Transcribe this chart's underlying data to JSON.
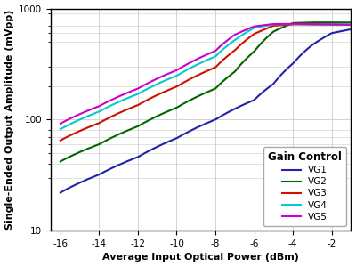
{
  "xlabel": "Average Input Optical Power (dBm)",
  "ylabel": "Single-Ended Output Amplitude (mVpp)",
  "xlim": [
    -16.5,
    -1.0
  ],
  "ylim": [
    10,
    1000
  ],
  "xticks": [
    -16,
    -14,
    -12,
    -10,
    -8,
    -6,
    -4,
    -2
  ],
  "yticks_major": [
    10,
    100,
    1000
  ],
  "legend_title": "Gain Control",
  "series": [
    {
      "label": "VG1",
      "color": "#2222aa",
      "x": [
        -16,
        -14,
        -12,
        -10,
        -8,
        -6,
        -5,
        -4,
        -3,
        -2,
        -1
      ],
      "y": [
        22,
        32,
        46,
        68,
        100,
        150,
        210,
        320,
        470,
        600,
        650
      ]
    },
    {
      "label": "VG2",
      "color": "#006600",
      "x": [
        -16,
        -14,
        -12,
        -10,
        -8,
        -7,
        -6,
        -5,
        -4,
        -3,
        -2,
        -1
      ],
      "y": [
        42,
        60,
        87,
        128,
        190,
        270,
        410,
        620,
        740,
        750,
        750,
        748
      ]
    },
    {
      "label": "VG3",
      "color": "#cc1100",
      "x": [
        -16,
        -14,
        -12,
        -10,
        -8,
        -7,
        -6,
        -5,
        -4,
        -3,
        -2,
        -1
      ],
      "y": [
        65,
        93,
        135,
        198,
        295,
        420,
        590,
        700,
        720,
        718,
        715,
        712
      ]
    },
    {
      "label": "VG4",
      "color": "#00cccc",
      "x": [
        -16,
        -14,
        -12,
        -10,
        -8,
        -7,
        -6,
        -5,
        -4,
        -3,
        -2,
        -1
      ],
      "y": [
        82,
        118,
        170,
        248,
        370,
        520,
        670,
        720,
        725,
        720,
        718,
        715
      ]
    },
    {
      "label": "VG5",
      "color": "#cc00cc",
      "x": [
        -16,
        -14,
        -12,
        -10,
        -8,
        -7,
        -6,
        -5,
        -4,
        -3,
        -2,
        -1
      ],
      "y": [
        92,
        132,
        190,
        278,
        415,
        580,
        690,
        725,
        728,
        724,
        720,
        716
      ]
    }
  ],
  "grid_color": "#cccccc",
  "background_color": "#ffffff",
  "legend_fontsize": 7.5,
  "legend_title_fontsize": 8.5,
  "axis_label_fontsize": 8,
  "tick_fontsize": 7.5
}
